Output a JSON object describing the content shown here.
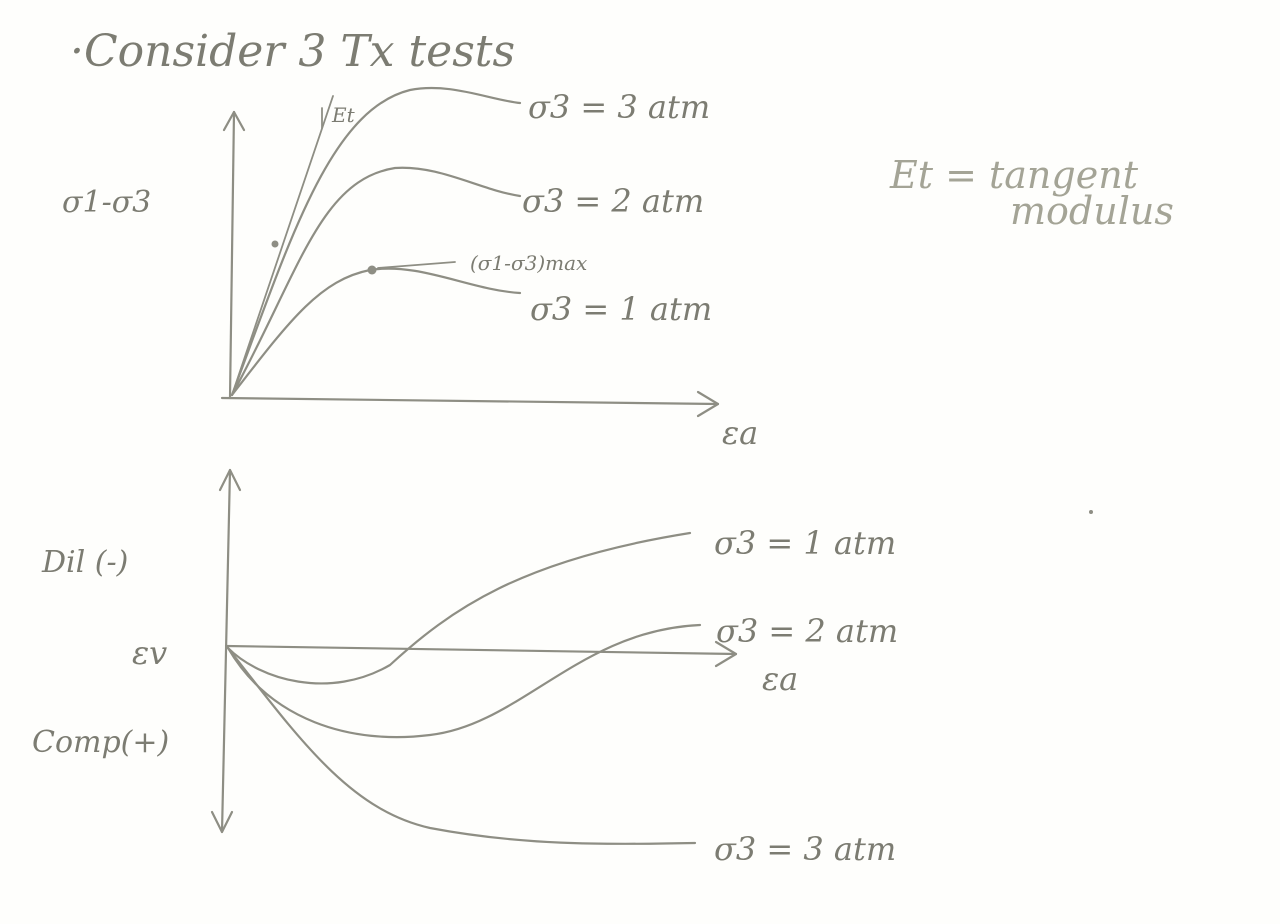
{
  "title": "·Consider 3 Tx tests",
  "top_plot": {
    "y_label": "σ1-σ3",
    "x_label": "εa",
    "tangent_label": "Et",
    "peak_label": "(σ1-σ3)max",
    "curves": [
      {
        "label": "σ3 = 3 atm"
      },
      {
        "label": "σ3 = 2 atm"
      },
      {
        "label": "σ3 = 1 atm"
      }
    ]
  },
  "note": {
    "line1": "Et = tangent",
    "line2": "modulus"
  },
  "bottom_plot": {
    "y_label_top": "Dil (-)",
    "y_label_mid": "εv",
    "y_label_bottom": "Comp(+)",
    "x_label": "εa",
    "curves": [
      {
        "label": "σ3 = 1 atm"
      },
      {
        "label": "σ3 = 2 atm"
      },
      {
        "label": "σ3 = 3 atm"
      }
    ]
  },
  "colors": {
    "ink": "#8e8e84",
    "paper": "#fefefc"
  }
}
